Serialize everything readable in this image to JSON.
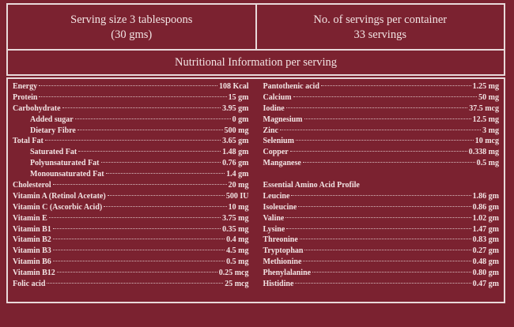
{
  "serving": {
    "line1": "Serving size 3 tablespoons",
    "line2": "(30 gms)"
  },
  "servings_per_container": {
    "line1": "No. of servings per container",
    "line2": "33 servings"
  },
  "title": "Nutritional Information per serving",
  "left": [
    {
      "label": "Energy",
      "value": "108 Kcal",
      "sub": false
    },
    {
      "label": "Protein",
      "value": "15 gm",
      "sub": false
    },
    {
      "label": "Carbohydrate",
      "value": "3.95 gm",
      "sub": false
    },
    {
      "label": "Added sugar",
      "value": "0 gm",
      "sub": true
    },
    {
      "label": "Dietary Fibre",
      "value": "500 mg",
      "sub": true
    },
    {
      "label": "Total Fat",
      "value": "3.65 gm",
      "sub": false
    },
    {
      "label": "Saturated Fat",
      "value": "1.48 gm",
      "sub": true
    },
    {
      "label": "Polyunsaturated Fat",
      "value": "0.76 gm",
      "sub": true
    },
    {
      "label": "Monounsaturated Fat",
      "value": "1.4 gm",
      "sub": true
    },
    {
      "label": "Cholesterol",
      "value": "20 mg",
      "sub": false
    },
    {
      "label": "Vitamin A (Retinol Acetate)",
      "value": "500 IU",
      "sub": false
    },
    {
      "label": "Vitamin C (Ascorbic Acid)",
      "value": "10 mg",
      "sub": false
    },
    {
      "label": "Vitamin E",
      "value": "3.75 mg",
      "sub": false
    },
    {
      "label": "Vitamin B1",
      "value": "0.35 mg",
      "sub": false
    },
    {
      "label": "Vitamin B2",
      "value": "0.4 mg",
      "sub": false
    },
    {
      "label": "Vitamin B3",
      "value": "4.5 mg",
      "sub": false
    },
    {
      "label": "Vitamin B6",
      "value": "0.5 mg",
      "sub": false
    },
    {
      "label": "Vitamin B12",
      "value": "0.25 mcg",
      "sub": false
    },
    {
      "label": "Folic acid",
      "value": "25 mcg",
      "sub": false
    }
  ],
  "minerals": [
    {
      "label": "Pantothenic acid",
      "value": "1.25 mg"
    },
    {
      "label": "Calcium",
      "value": "50 mg"
    },
    {
      "label": "Iodine",
      "value": "37.5 mcg"
    },
    {
      "label": "Magnesium",
      "value": "12.5 mg"
    },
    {
      "label": "Zinc",
      "value": "3 mg"
    },
    {
      "label": "Selenium",
      "value": "10 mcg"
    },
    {
      "label": "Copper",
      "value": "0.338 mg"
    },
    {
      "label": "Manganese",
      "value": "0.5 mg"
    }
  ],
  "amino_heading": "Essential Amino Acid Profile",
  "amino": [
    {
      "label": "Leucine",
      "value": "1.86 gm"
    },
    {
      "label": "Isoleucine",
      "value": "0.86 gm"
    },
    {
      "label": "Valine",
      "value": "1.02 gm"
    },
    {
      "label": "Lysine",
      "value": "1.47 gm"
    },
    {
      "label": "Threonine",
      "value": "0.83 gm"
    },
    {
      "label": "Tryptophan",
      "value": "0.27 gm"
    },
    {
      "label": "Methionine",
      "value": "0.48 gm"
    },
    {
      "label": "Phenylalanine",
      "value": "0.80 gm"
    },
    {
      "label": "Histidine",
      "value": "0.47 gm"
    }
  ]
}
